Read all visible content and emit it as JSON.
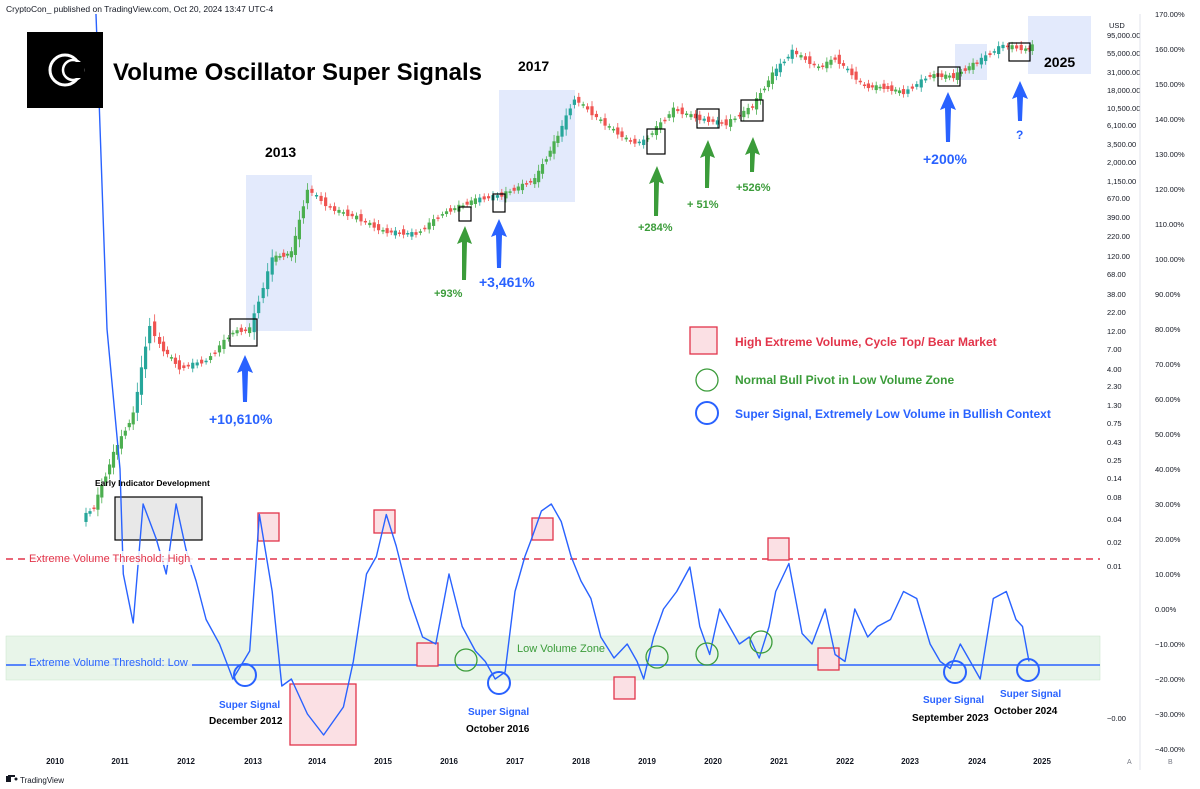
{
  "header": {
    "publisher_line": "CryptoCon_ published on TradingView.com, Oct 20, 2024 13:47 UTC-4",
    "logo_glyph": "C",
    "title": "Volume Oscillator Super Signals",
    "footer_brand": "TradingView"
  },
  "price_axis": {
    "currency": "USD",
    "ticks": [
      "95,000.00",
      "55,000.00",
      "31,000.00",
      "18,000.00",
      "10,500.00",
      "6,100.00",
      "3,500.00",
      "2,000.00",
      "1,150.00",
      "670.00",
      "390.00",
      "220.00",
      "120.00",
      "68.00",
      "38.00",
      "22.00",
      "12.00",
      "7.00",
      "4.00",
      "2.30",
      "1.30",
      "0.75",
      "0.43",
      "0.25",
      "0.14",
      "0.08",
      "0.04",
      "0.02",
      "0.01",
      "−0.00"
    ]
  },
  "osc_axis": {
    "ticks": [
      "170.00%",
      "160.00%",
      "150.00%",
      "140.00%",
      "130.00%",
      "120.00%",
      "110.00%",
      "100.00%",
      "90.00%",
      "80.00%",
      "70.00%",
      "60.00%",
      "50.00%",
      "40.00%",
      "30.00%",
      "20.00%",
      "10.00%",
      "0.00%",
      "−10.00%",
      "−20.00%",
      "−30.00%",
      "−40.00%"
    ]
  },
  "year_axis": {
    "labels": [
      "2010",
      "2011",
      "2012",
      "2013",
      "2014",
      "2015",
      "2016",
      "2017",
      "2018",
      "2019",
      "2020",
      "2021",
      "2022",
      "2023",
      "2024",
      "2025"
    ],
    "corner_a": "A",
    "corner_b": "B"
  },
  "cycle_labels": [
    "2013",
    "2017",
    "2025"
  ],
  "gain_labels": {
    "blue": [
      "+10,610%",
      "+3,461%",
      "+200%",
      "?"
    ],
    "green": [
      "+93%",
      "+284%",
      "+ 51%",
      "+526%"
    ]
  },
  "legend": [
    {
      "label": "High Extreme Volume, Cycle Top/ Bear Market",
      "color": "#e2344a",
      "marker": "red-square"
    },
    {
      "label": "Normal Bull Pivot in Low Volume Zone",
      "color": "#3b9c3a",
      "marker": "green-circle"
    },
    {
      "label": "Super Signal, Extremely Low Volume in Bullish Context",
      "color": "#2962ff",
      "marker": "blue-circle"
    }
  ],
  "annotations": {
    "early_dev": "Early Indicator Development",
    "threshold_high": "Extreme Volume Threshold: High",
    "threshold_low": "Extreme Volume Threshold: Low",
    "low_zone": "Low Volume Zone",
    "super_signals": [
      {
        "title": "Super Signal",
        "date": "December 2012"
      },
      {
        "title": "Super Signal",
        "date": "October 2016"
      },
      {
        "title": "Super Signal",
        "date": "September 2023"
      },
      {
        "title": "Super Signal",
        "date": "October 2024"
      }
    ]
  },
  "colors": {
    "up": "#26a69a",
    "up_green": "#4caf50",
    "down": "#ef5350",
    "line": "#2962ff",
    "zone": "#e8f5e9",
    "highlight": "#e3eafc",
    "red": "#e2344a",
    "green": "#3b9c3a"
  },
  "chart_data": [
    {
      "type": "candlestick",
      "title": "",
      "series_name": "",
      "y_scale": "log",
      "ylim": [
        0.01,
        95000
      ],
      "x_range": [
        "2010",
        "2025"
      ],
      "x": [
        2010.6,
        2010.9,
        2011.2,
        2011.45,
        2011.6,
        2011.9,
        2012.3,
        2012.7,
        2012.95,
        2013.3,
        2013.6,
        2013.85,
        2014.2,
        2014.6,
        2015.0,
        2015.5,
        2015.9,
        2016.4,
        2016.8,
        2017.3,
        2017.65,
        2017.9,
        2018.3,
        2018.75,
        2018.95,
        2019.4,
        2019.8,
        2020.2,
        2020.6,
        2020.9,
        2021.2,
        2021.6,
        2021.85,
        2022.3,
        2022.6,
        2022.9,
        2023.3,
        2023.65,
        2024.0,
        2024.4,
        2024.75,
        2024.85
      ],
      "close": [
        0.06,
        0.3,
        1,
        15,
        8,
        4,
        5,
        12,
        13,
        110,
        130,
        900,
        500,
        380,
        250,
        230,
        430,
        650,
        750,
        1200,
        4500,
        14000,
        7000,
        3700,
        3800,
        10000,
        7500,
        6500,
        11000,
        29000,
        58000,
        35000,
        47000,
        20000,
        19500,
        16500,
        28000,
        27000,
        42000,
        70000,
        61000,
        68000
      ]
    },
    {
      "type": "line",
      "title": "",
      "series_name": "",
      "y_unit": "%",
      "ylim": [
        -40,
        170
      ],
      "x_range": [
        "2010",
        "2025"
      ],
      "x": [
        2010.55,
        2010.65,
        2010.8,
        2011.0,
        2011.05,
        2011.2,
        2011.35,
        2011.55,
        2011.7,
        2011.85,
        2012.0,
        2012.15,
        2012.3,
        2012.5,
        2012.7,
        2012.95,
        2013.1,
        2013.3,
        2013.45,
        2013.6,
        2013.85,
        2014.1,
        2014.4,
        2014.55,
        2014.75,
        2014.9,
        2015.05,
        2015.2,
        2015.4,
        2015.6,
        2015.8,
        2016.0,
        2016.2,
        2016.4,
        2016.55,
        2016.7,
        2016.85,
        2017.0,
        2017.15,
        2017.25,
        2017.4,
        2017.55,
        2017.7,
        2017.85,
        2018.0,
        2018.15,
        2018.3,
        2018.5,
        2018.7,
        2018.85,
        2018.95,
        2019.1,
        2019.25,
        2019.45,
        2019.65,
        2019.8,
        2019.95,
        2020.1,
        2020.25,
        2020.4,
        2020.55,
        2020.7,
        2020.85,
        2020.95,
        2021.15,
        2021.35,
        2021.5,
        2021.7,
        2021.85,
        2022.0,
        2022.15,
        2022.35,
        2022.5,
        2022.7,
        2022.9,
        2023.1,
        2023.3,
        2023.45,
        2023.6,
        2023.75,
        2023.9,
        2024.05,
        2024.25,
        2024.45,
        2024.6,
        2024.7,
        2024.8
      ],
      "y": [
        210,
        160,
        80,
        40,
        10,
        -4,
        30,
        20,
        10,
        30,
        17,
        8,
        -3,
        -10,
        -20,
        -12,
        27,
        5,
        -22,
        -20,
        -30,
        -36,
        -28,
        -15,
        10,
        15,
        27,
        18,
        3,
        -8,
        -10,
        10,
        -5,
        -12,
        -15,
        -20,
        -18,
        5,
        15,
        20,
        28,
        30,
        25,
        15,
        8,
        3,
        -8,
        -14,
        -10,
        -15,
        -20,
        -8,
        0,
        5,
        12,
        -5,
        -13,
        0,
        -5,
        -10,
        -8,
        -14,
        -5,
        5,
        13,
        -7,
        -10,
        0,
        -13,
        -15,
        0,
        -8,
        -5,
        -3,
        5,
        3,
        -10,
        -15,
        -17,
        -10,
        -15,
        -20,
        3,
        5,
        -3,
        -5,
        -15
      ],
      "thresholds": {
        "high": 14,
        "low": -16
      },
      "low_volume_zone": [
        -20,
        -8
      ]
    }
  ]
}
